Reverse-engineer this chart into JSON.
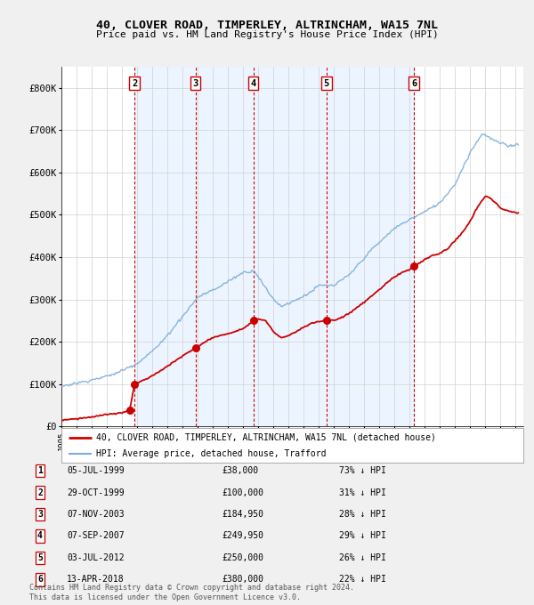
{
  "title": "40, CLOVER ROAD, TIMPERLEY, ALTRINCHAM, WA15 7NL",
  "subtitle": "Price paid vs. HM Land Registry's House Price Index (HPI)",
  "legend_label_red": "40, CLOVER ROAD, TIMPERLEY, ALTRINCHAM, WA15 7NL (detached house)",
  "legend_label_blue": "HPI: Average price, detached house, Trafford",
  "footer_line1": "Contains HM Land Registry data © Crown copyright and database right 2024.",
  "footer_line2": "This data is licensed under the Open Government Licence v3.0.",
  "transactions": [
    {
      "num": 1,
      "date": "05-JUL-1999",
      "price": 38000,
      "pct": "73% ↓ HPI",
      "year": 1999.5
    },
    {
      "num": 2,
      "date": "29-OCT-1999",
      "price": 100000,
      "pct": "31% ↓ HPI",
      "year": 1999.83
    },
    {
      "num": 3,
      "date": "07-NOV-2003",
      "price": 184950,
      "pct": "28% ↓ HPI",
      "year": 2003.85
    },
    {
      "num": 4,
      "date": "07-SEP-2007",
      "price": 249950,
      "pct": "29% ↓ HPI",
      "year": 2007.68
    },
    {
      "num": 5,
      "date": "03-JUL-2012",
      "price": 250000,
      "pct": "26% ↓ HPI",
      "year": 2012.5
    },
    {
      "num": 6,
      "date": "13-APR-2018",
      "price": 380000,
      "pct": "22% ↓ HPI",
      "year": 2018.28
    }
  ],
  "red_color": "#cc0000",
  "blue_color": "#7aaddc",
  "dashed_color": "#cc0000",
  "plot_bg": "#ffffff",
  "fig_bg": "#f0f0f0",
  "shaded_color": "#ddeeff",
  "ylim": [
    0,
    850000
  ],
  "xlim": [
    1995,
    2025.5
  ],
  "yticks": [
    0,
    100000,
    200000,
    300000,
    400000,
    500000,
    600000,
    700000,
    800000
  ],
  "ytick_labels": [
    "£0",
    "£100K",
    "£200K",
    "£300K",
    "£400K",
    "£500K",
    "£600K",
    "£700K",
    "£800K"
  ]
}
